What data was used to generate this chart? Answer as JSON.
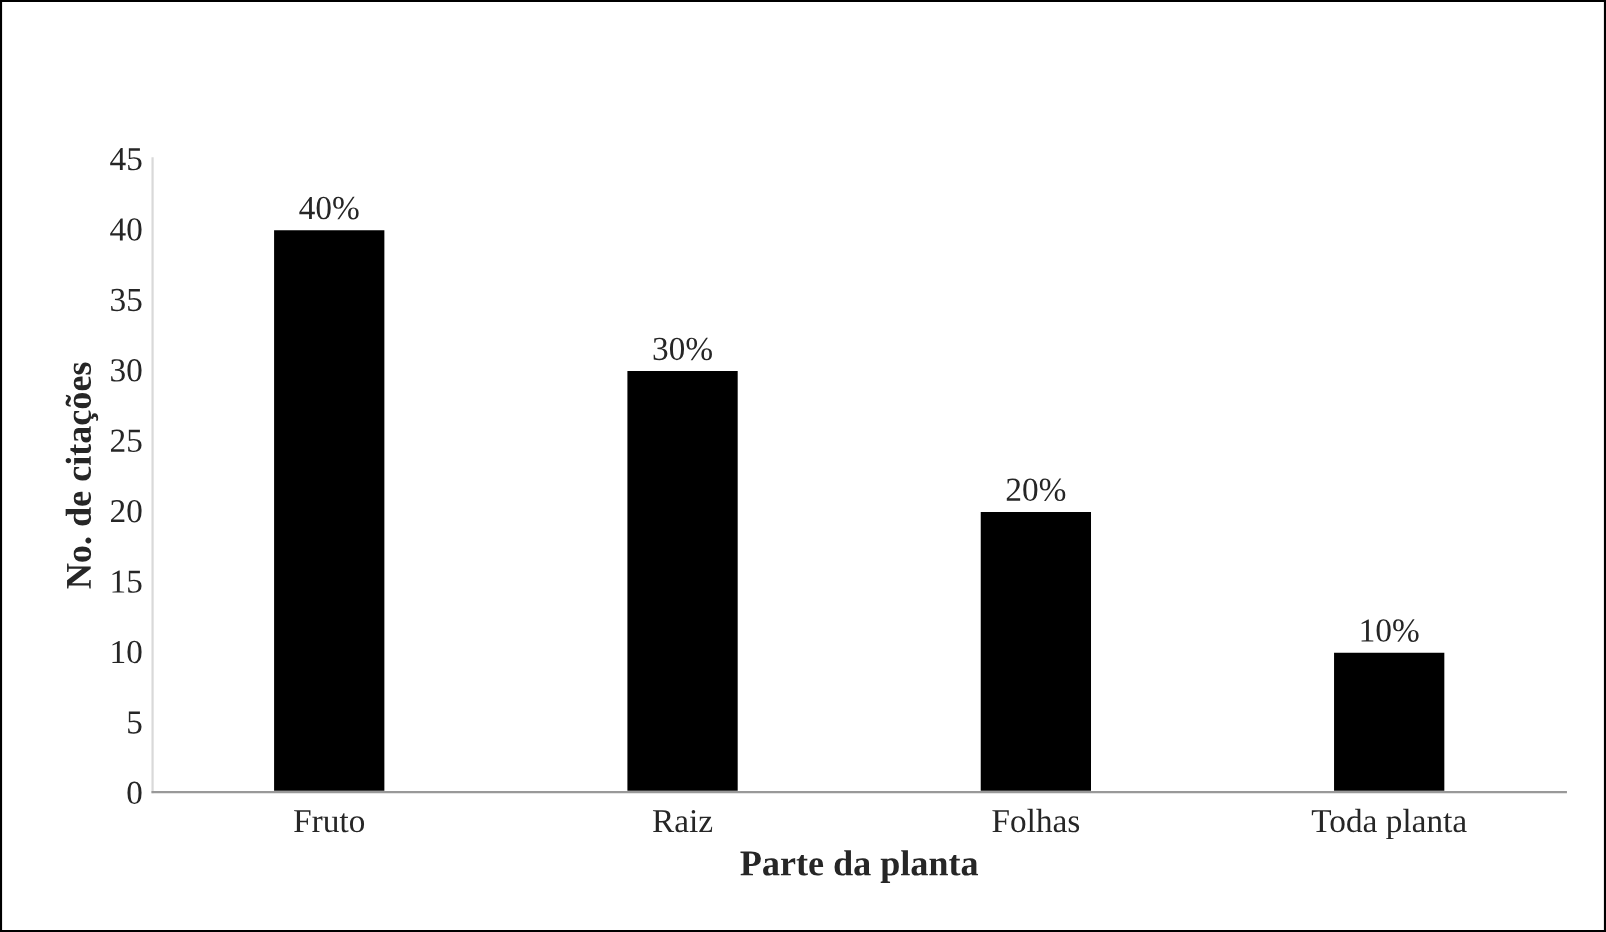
{
  "chart_data": {
    "type": "bar",
    "xlabel": "Parte da planta",
    "ylabel": "No. de citações",
    "categories": [
      "Fruto",
      "Raiz",
      "Folhas",
      "Toda planta"
    ],
    "values": [
      40,
      30,
      20,
      10
    ],
    "color": "#000000",
    "value_labels": [
      "40%",
      "30%",
      "20%",
      "10%"
    ],
    "ylim": [
      0,
      45
    ],
    "yticks": [
      0,
      5,
      10,
      15,
      20,
      25,
      30,
      35,
      40,
      45
    ],
    "grid": false,
    "legend": false
  }
}
